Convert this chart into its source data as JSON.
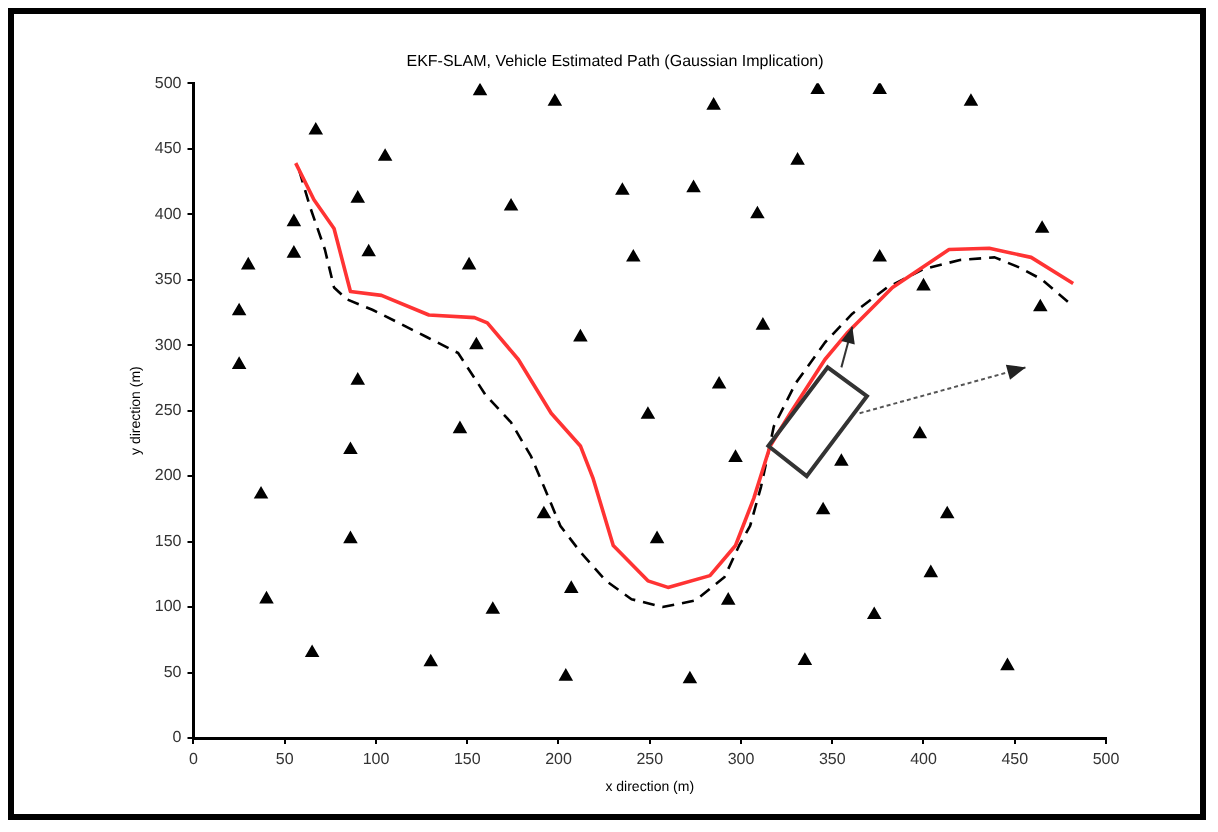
{
  "chart_data": {
    "type": "line",
    "title": "EKF-SLAM, Vehicle Estimated Path (Gaussian Implication)",
    "xlabel": "x direction (m)",
    "ylabel": "y direction (m)",
    "xlim": [
      0,
      500
    ],
    "ylim": [
      0,
      500
    ],
    "xticks": [
      0,
      50,
      100,
      150,
      200,
      250,
      300,
      350,
      400,
      450,
      500
    ],
    "yticks": [
      0,
      50,
      100,
      150,
      200,
      250,
      300,
      350,
      400,
      450,
      500
    ],
    "series": [
      {
        "type": "scatter",
        "marker": "triangle",
        "color": "#000000",
        "x": [
          67,
          105,
          90,
          174,
          235,
          55,
          55,
          30,
          96,
          151,
          241,
          25,
          25,
          155,
          212,
          90,
          157,
          198,
          146,
          86,
          37,
          192,
          86,
          40,
          207,
          164,
          65,
          130,
          204,
          249,
          285,
          342,
          376,
          426,
          331,
          274,
          309,
          376,
          465,
          400,
          464,
          312,
          288,
          398,
          297,
          355,
          345,
          413,
          254,
          404,
          293,
          373,
          335,
          272,
          446
        ],
        "values": [
          464,
          444,
          412,
          406,
          418,
          394,
          370,
          361,
          371,
          361,
          367,
          326,
          285,
          300,
          306,
          273,
          494,
          486,
          236,
          220,
          186,
          171,
          152,
          106,
          114,
          98,
          65,
          58,
          47,
          247,
          483,
          495,
          495,
          486,
          441,
          420,
          400,
          367,
          389,
          345,
          329,
          315,
          270,
          232,
          214,
          211,
          174,
          171,
          152,
          126,
          105,
          94,
          59,
          45,
          55
        ]
      },
      {
        "type": "line",
        "marker": "none",
        "line_style": "solid",
        "color": "#ff3333",
        "x": [
          56,
          66,
          77,
          86,
          103,
          129,
          154,
          161,
          178,
          196,
          212,
          219,
          230,
          249,
          260,
          283,
          297,
          307,
          316,
          327,
          346,
          358,
          383,
          414,
          436,
          459,
          482
        ],
        "values": [
          439,
          411,
          389,
          341,
          338,
          323,
          321,
          317,
          289,
          248,
          223,
          198,
          147,
          120,
          115,
          124,
          147,
          183,
          223,
          248,
          289,
          309,
          344,
          373,
          374,
          367,
          347
        ]
      },
      {
        "type": "line",
        "marker": "none",
        "line_style": "dashed",
        "color": "#000000",
        "x": [
          58,
          64,
          72,
          77,
          84,
          98,
          111,
          128,
          145,
          160,
          174,
          185,
          192,
          201,
          212,
          226,
          240,
          257,
          275,
          291,
          299,
          305,
          311,
          318,
          330,
          346,
          361,
          380,
          400,
          420,
          439,
          453,
          465,
          480
        ],
        "values": [
          433,
          405,
          373,
          344,
          335,
          327,
          318,
          306,
          294,
          262,
          241,
          215,
          192,
          162,
          142,
          120,
          106,
          100,
          105,
          123,
          147,
          162,
          192,
          238,
          271,
          302,
          324,
          344,
          358,
          365,
          367,
          359,
          350,
          332
        ]
      }
    ]
  }
}
